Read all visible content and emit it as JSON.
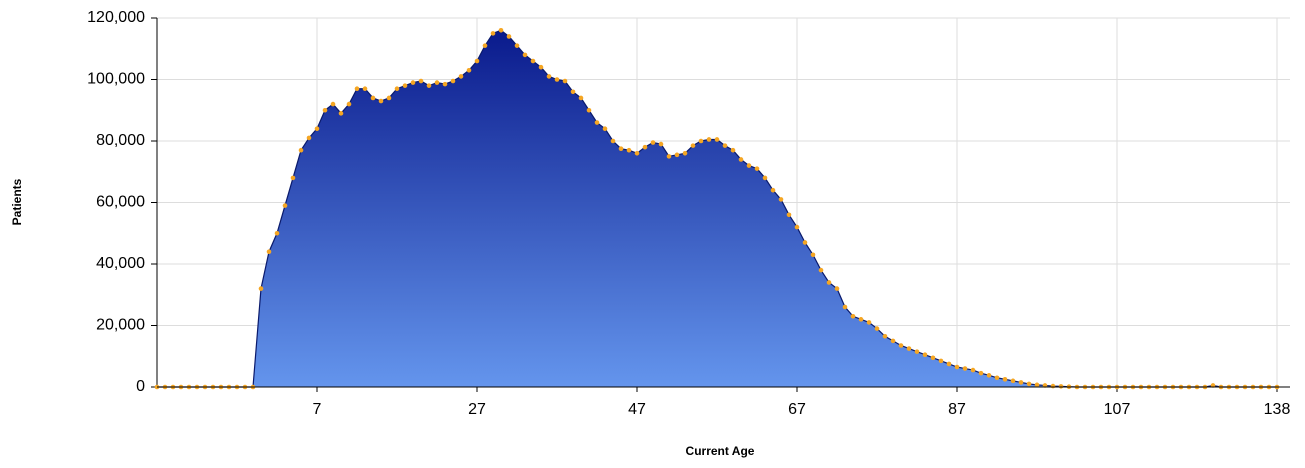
{
  "chart_data": {
    "type": "area",
    "x_label": "Current Age",
    "y_label": "Patients",
    "categories": [
      null,
      null,
      null,
      null,
      null,
      null,
      null,
      null,
      null,
      null,
      null,
      null,
      null,
      null,
      null,
      null,
      null,
      null,
      null,
      null,
      "7",
      null,
      null,
      null,
      null,
      null,
      null,
      null,
      null,
      null,
      null,
      null,
      null,
      null,
      null,
      null,
      null,
      null,
      null,
      null,
      "27",
      null,
      null,
      null,
      null,
      null,
      null,
      null,
      null,
      null,
      null,
      null,
      null,
      null,
      null,
      null,
      null,
      null,
      null,
      null,
      "47",
      null,
      null,
      null,
      null,
      null,
      null,
      null,
      null,
      null,
      null,
      null,
      null,
      null,
      null,
      null,
      null,
      null,
      null,
      null,
      "67",
      null,
      null,
      null,
      null,
      null,
      null,
      null,
      null,
      null,
      null,
      null,
      null,
      null,
      null,
      null,
      null,
      null,
      null,
      null,
      "87",
      null,
      null,
      null,
      null,
      null,
      null,
      null,
      null,
      null,
      null,
      null,
      null,
      null,
      null,
      null,
      null,
      null,
      null,
      null,
      "107",
      null,
      null,
      null,
      null,
      null,
      null,
      null,
      null,
      null,
      null,
      null,
      null,
      null,
      null,
      null,
      null,
      null,
      null,
      null,
      "138"
    ],
    "values": [
      0,
      0,
      0,
      0,
      0,
      0,
      0,
      0,
      0,
      0,
      0,
      0,
      0,
      32000,
      44000,
      50000,
      59000,
      68000,
      77000,
      81000,
      84000,
      90000,
      92000,
      89000,
      92000,
      97000,
      97000,
      94000,
      93000,
      94000,
      97000,
      98000,
      99000,
      99500,
      98000,
      99000,
      98500,
      99500,
      101000,
      103000,
      106000,
      111000,
      115000,
      116000,
      114000,
      111000,
      108000,
      106000,
      104000,
      101000,
      100000,
      99500,
      96000,
      94000,
      90000,
      86000,
      84000,
      80000,
      77500,
      77000,
      76000,
      78000,
      79500,
      79000,
      75000,
      75500,
      76000,
      78500,
      80000,
      80500,
      80500,
      78500,
      77000,
      74000,
      72000,
      71000,
      68000,
      64000,
      61000,
      56000,
      52000,
      47000,
      43000,
      38000,
      34000,
      32000,
      26000,
      23000,
      22000,
      21000,
      19000,
      16500,
      15000,
      13500,
      12500,
      11500,
      10500,
      9500,
      8500,
      7500,
      6500,
      6000,
      5500,
      4500,
      3800,
      3000,
      2500,
      2000,
      1500,
      1000,
      700,
      500,
      300,
      200,
      100,
      0,
      0,
      0,
      0,
      0,
      0,
      0,
      0,
      0,
      0,
      0,
      0,
      0,
      0,
      0,
      0,
      0,
      500,
      0,
      0,
      0,
      0,
      0,
      0,
      0,
      0
    ],
    "fill_top": "#0a1a8c",
    "fill_bottom": "#6495ed",
    "line_color": "#0a1a6c",
    "marker_color": "#f5a623",
    "ylim": [
      0,
      120000
    ],
    "yticks": [
      0,
      {
        "value": 20000,
        "label": "20,000"
      },
      {
        "value": 40000,
        "label": "40,000"
      },
      {
        "value": 60000,
        "label": "60,000"
      },
      {
        "value": 80000,
        "label": "80,000"
      },
      {
        "value": 100000,
        "label": "100,000"
      },
      {
        "value": 120000,
        "label": "120,000"
      }
    ],
    "grid": true
  }
}
